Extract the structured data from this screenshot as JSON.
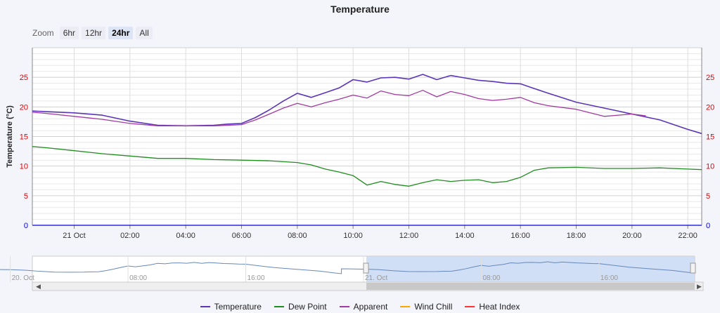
{
  "title": "Temperature",
  "zoom": {
    "label": "Zoom",
    "buttons": [
      {
        "label": "6hr",
        "active": false
      },
      {
        "label": "12hr",
        "active": false
      },
      {
        "label": "24hr",
        "active": true
      },
      {
        "label": "All",
        "active": false
      }
    ]
  },
  "navigator": {
    "x_labels": [
      "20. Oct",
      "08:00",
      "16:00",
      "21. Oct",
      "08:00",
      "16:00"
    ]
  },
  "colors": {
    "temperature": "#5b35b8",
    "dew_point": "#1e8c1e",
    "apparent": "#a33aa3",
    "wind_chill": "#ffa500",
    "heat_index": "#ff3333",
    "navigator_line": "#6688bb",
    "navigator_fill": "#c8d8f4",
    "tick_red": "#e00000",
    "tick_blue": "#0000dd"
  },
  "chart_data": {
    "type": "line",
    "title": "Temperature",
    "xlabel": "",
    "ylabel": "Temperature (°C)",
    "ylim": [
      0,
      30
    ],
    "y_ticks": [
      0,
      5,
      10,
      15,
      20,
      25
    ],
    "x_range": [
      "20 Oct 22:30",
      "21 Oct 22:30"
    ],
    "x_tick_labels": [
      "21 Oct",
      "02:00",
      "04:00",
      "06:00",
      "08:00",
      "10:00",
      "12:00",
      "14:00",
      "16:00",
      "18:00",
      "20:00",
      "22:00"
    ],
    "x_unit": "hour of 21 Oct (negative = 20 Oct)",
    "grid": true,
    "legend": "bottom",
    "series": [
      {
        "name": "Temperature",
        "x": [
          -1.5,
          -1,
          0,
          1,
          2,
          3,
          4,
          5,
          5.5,
          6,
          6.5,
          7,
          7.5,
          8,
          8.5,
          9,
          9.5,
          10,
          10.5,
          11,
          11.5,
          12,
          12.5,
          13,
          13.5,
          14,
          14.5,
          15,
          15.5,
          16,
          16.5,
          17,
          18,
          19,
          20,
          21,
          22,
          22.5
        ],
        "values": [
          19.3,
          19.2,
          19.0,
          18.6,
          17.6,
          16.9,
          16.8,
          16.9,
          17.1,
          17.2,
          18.2,
          19.5,
          21.0,
          22.3,
          21.6,
          22.4,
          23.2,
          24.6,
          24.2,
          24.9,
          25.0,
          24.7,
          25.5,
          24.6,
          25.3,
          24.9,
          24.5,
          24.3,
          24.0,
          23.9,
          23.1,
          22.3,
          20.8,
          19.8,
          18.8,
          17.8,
          16.2,
          15.5
        ]
      },
      {
        "name": "Dew Point",
        "x": [
          -1.5,
          -1,
          0,
          1,
          2,
          3,
          4,
          5,
          6,
          7,
          8,
          8.5,
          9,
          9.5,
          10,
          10.5,
          11,
          11.5,
          12,
          12.5,
          13,
          13.5,
          14,
          14.5,
          15,
          15.5,
          16,
          16.5,
          17,
          18,
          19,
          20,
          21,
          22,
          22.5
        ],
        "values": [
          13.3,
          13.1,
          12.6,
          12.1,
          11.7,
          11.3,
          11.3,
          11.1,
          11.0,
          10.9,
          10.6,
          10.2,
          9.5,
          9.0,
          8.4,
          6.8,
          7.4,
          6.9,
          6.6,
          7.2,
          7.7,
          7.4,
          7.6,
          7.7,
          7.2,
          7.4,
          8.1,
          9.3,
          9.7,
          9.8,
          9.6,
          9.6,
          9.7,
          9.5,
          9.4
        ]
      },
      {
        "name": "Apparent",
        "x": [
          -1.5,
          -1,
          0,
          1,
          2,
          3,
          4,
          5,
          5.5,
          6,
          6.5,
          7,
          7.5,
          8,
          8.5,
          9,
          9.5,
          10,
          10.5,
          11,
          11.5,
          12,
          12.5,
          13,
          13.5,
          14,
          14.5,
          15,
          15.5,
          16,
          16.5,
          17,
          18,
          19,
          20,
          20.5
        ],
        "values": [
          19.1,
          18.9,
          18.4,
          17.9,
          17.2,
          16.8,
          16.8,
          16.8,
          16.9,
          17.0,
          17.8,
          18.8,
          19.8,
          20.6,
          20.0,
          20.7,
          21.3,
          22.0,
          21.5,
          22.7,
          22.1,
          21.9,
          22.8,
          21.7,
          22.6,
          22.1,
          21.4,
          21.1,
          21.3,
          21.6,
          20.7,
          20.2,
          19.6,
          18.4,
          18.8,
          18.5
        ]
      },
      {
        "name": "Wind Chill",
        "x": [],
        "values": []
      },
      {
        "name": "Heat Index",
        "x": [],
        "values": []
      }
    ]
  }
}
